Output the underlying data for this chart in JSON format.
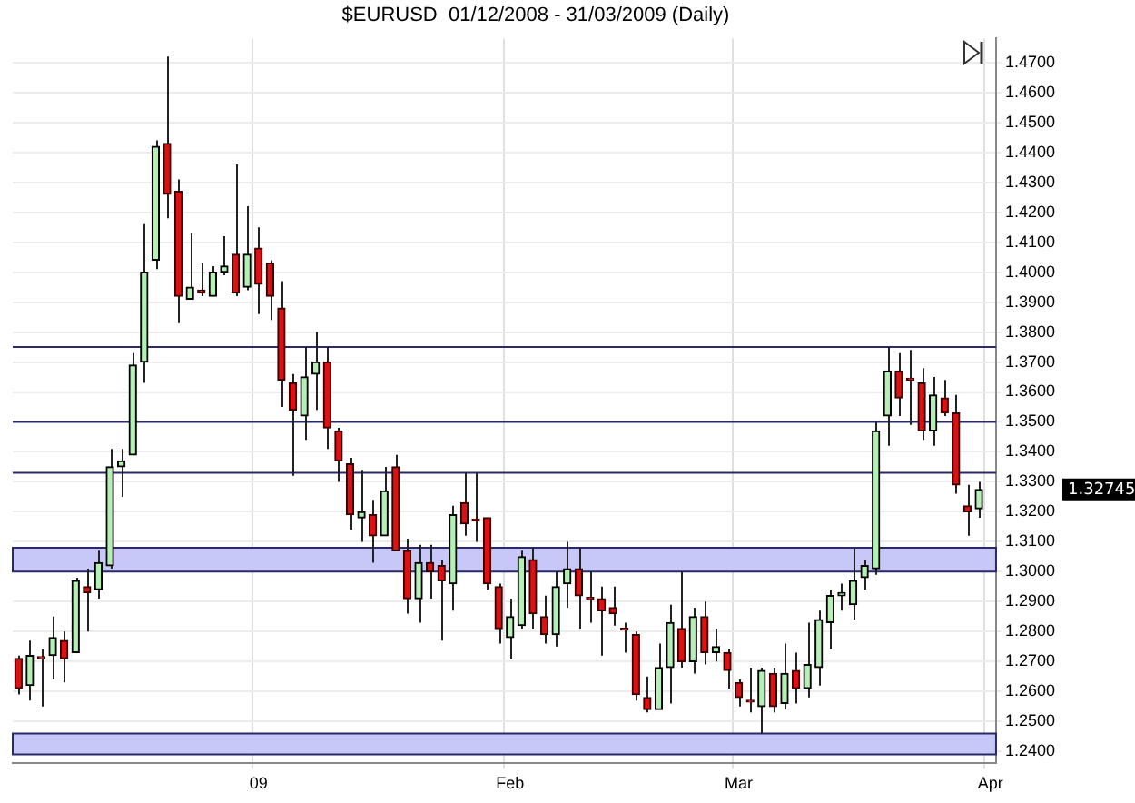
{
  "chart_data": {
    "type": "candlestick",
    "title": "$EURUSD  01/12/2008 - 31/03/2009 (Daily)",
    "categories": [
      null,
      null,
      null,
      null,
      null,
      null,
      null,
      null,
      null,
      null,
      null,
      null,
      null,
      null,
      null,
      null,
      null,
      null,
      null,
      null,
      null,
      "09",
      null,
      null,
      null,
      null,
      null,
      null,
      null,
      null,
      null,
      null,
      null,
      null,
      null,
      null,
      null,
      null,
      null,
      null,
      null,
      null,
      null,
      "Feb",
      null,
      null,
      null,
      null,
      null,
      null,
      null,
      null,
      null,
      null,
      null,
      null,
      null,
      null,
      null,
      null,
      null,
      null,
      null,
      "Mar",
      null,
      null,
      null,
      null,
      null,
      null,
      null,
      null,
      null,
      null,
      null,
      null,
      null,
      null,
      null,
      null,
      null,
      null,
      null,
      null,
      null,
      "Apr"
    ],
    "ohlc": [
      [
        1.271,
        1.272,
        1.259,
        1.261
      ],
      [
        1.262,
        1.277,
        1.257,
        1.272
      ],
      [
        1.2715,
        1.274,
        1.255,
        1.271
      ],
      [
        1.272,
        1.285,
        1.264,
        1.278
      ],
      [
        1.277,
        1.28,
        1.263,
        1.271
      ],
      [
        1.273,
        1.298,
        1.273,
        1.297
      ],
      [
        1.295,
        1.301,
        1.28,
        1.293
      ],
      [
        1.294,
        1.307,
        1.291,
        1.303
      ],
      [
        1.302,
        1.341,
        1.301,
        1.335
      ],
      [
        1.335,
        1.341,
        1.325,
        1.337
      ],
      [
        1.339,
        1.373,
        1.339,
        1.369
      ],
      [
        1.37,
        1.416,
        1.363,
        1.4
      ],
      [
        1.404,
        1.444,
        1.401,
        1.442
      ],
      [
        1.443,
        1.472,
        1.418,
        1.426
      ],
      [
        1.427,
        1.431,
        1.383,
        1.392
      ],
      [
        1.391,
        1.413,
        1.391,
        1.395
      ],
      [
        1.394,
        1.403,
        1.392,
        1.393
      ],
      [
        1.392,
        1.402,
        1.392,
        1.4
      ],
      [
        1.4,
        1.412,
        1.399,
        1.402
      ],
      [
        1.406,
        1.436,
        1.392,
        1.393
      ],
      [
        1.395,
        1.422,
        1.394,
        1.406
      ],
      [
        1.408,
        1.415,
        1.386,
        1.396
      ],
      [
        1.403,
        1.404,
        1.384,
        1.392
      ],
      [
        1.388,
        1.397,
        1.355,
        1.364
      ],
      [
        1.363,
        1.366,
        1.332,
        1.354
      ],
      [
        1.352,
        1.375,
        1.344,
        1.365
      ],
      [
        1.366,
        1.38,
        1.354,
        1.37
      ],
      [
        1.37,
        1.375,
        1.341,
        1.348
      ],
      [
        1.347,
        1.348,
        1.33,
        1.337
      ],
      [
        1.336,
        1.338,
        1.314,
        1.319
      ],
      [
        1.318,
        1.334,
        1.31,
        1.32
      ],
      [
        1.319,
        1.324,
        1.303,
        1.312
      ],
      [
        1.312,
        1.335,
        1.312,
        1.327
      ],
      [
        1.335,
        1.339,
        1.307,
        1.307
      ],
      [
        1.307,
        1.311,
        1.286,
        1.291
      ],
      [
        1.291,
        1.309,
        1.283,
        1.303
      ],
      [
        1.303,
        1.309,
        1.291,
        1.3
      ],
      [
        1.302,
        1.304,
        1.277,
        1.297
      ],
      [
        1.296,
        1.322,
        1.287,
        1.319
      ],
      [
        1.323,
        1.333,
        1.312,
        1.316
      ],
      [
        1.3175,
        1.333,
        1.31,
        1.317
      ],
      [
        1.318,
        1.318,
        1.294,
        1.296
      ],
      [
        1.295,
        1.296,
        1.276,
        1.281
      ],
      [
        1.278,
        1.291,
        1.271,
        1.285
      ],
      [
        1.282,
        1.307,
        1.281,
        1.305
      ],
      [
        1.304,
        1.308,
        1.281,
        1.286
      ],
      [
        1.285,
        1.292,
        1.276,
        1.279
      ],
      [
        1.279,
        1.3,
        1.275,
        1.295
      ],
      [
        1.296,
        1.31,
        1.288,
        1.301
      ],
      [
        1.301,
        1.308,
        1.281,
        1.292
      ],
      [
        1.2912,
        1.3,
        1.283,
        1.2908
      ],
      [
        1.291,
        1.295,
        1.272,
        1.287
      ],
      [
        1.288,
        1.295,
        1.282,
        1.286
      ],
      [
        1.2808,
        1.283,
        1.273,
        1.2805
      ],
      [
        1.279,
        1.28,
        1.257,
        1.259
      ],
      [
        1.258,
        1.265,
        1.253,
        1.254
      ],
      [
        1.254,
        1.276,
        1.254,
        1.268
      ],
      [
        1.268,
        1.289,
        1.256,
        1.283
      ],
      [
        1.281,
        1.3,
        1.268,
        1.27
      ],
      [
        1.27,
        1.288,
        1.266,
        1.285
      ],
      [
        1.285,
        1.29,
        1.269,
        1.273
      ],
      [
        1.273,
        1.281,
        1.27,
        1.275
      ],
      [
        1.273,
        1.274,
        1.261,
        1.267
      ],
      [
        1.263,
        1.264,
        1.255,
        1.258
      ],
      [
        1.2568,
        1.268,
        1.253,
        1.2565
      ],
      [
        1.255,
        1.268,
        1.246,
        1.267
      ],
      [
        1.266,
        1.268,
        1.253,
        1.255
      ],
      [
        1.256,
        1.276,
        1.254,
        1.266
      ],
      [
        1.267,
        1.273,
        1.256,
        1.261
      ],
      [
        1.261,
        1.283,
        1.258,
        1.269
      ],
      [
        1.268,
        1.287,
        1.262,
        1.284
      ],
      [
        1.283,
        1.294,
        1.274,
        1.292
      ],
      [
        1.292,
        1.296,
        1.287,
        1.293
      ],
      [
        1.289,
        1.308,
        1.284,
        1.297
      ],
      [
        1.298,
        1.304,
        1.294,
        1.302
      ],
      [
        1.301,
        1.35,
        1.299,
        1.347
      ],
      [
        1.352,
        1.375,
        1.342,
        1.367
      ],
      [
        1.367,
        1.373,
        1.352,
        1.358
      ],
      [
        1.3642,
        1.374,
        1.349,
        1.364
      ],
      [
        1.363,
        1.368,
        1.344,
        1.347
      ],
      [
        1.347,
        1.365,
        1.342,
        1.359
      ],
      [
        1.358,
        1.364,
        1.352,
        1.353
      ],
      [
        1.353,
        1.359,
        1.326,
        1.329
      ],
      [
        1.322,
        1.329,
        1.312,
        1.32
      ],
      [
        1.321,
        1.33,
        1.318,
        1.32745
      ],
      null
    ],
    "ylim": [
      1.236,
      1.478
    ],
    "yticks": [
      {
        "value": 1.24,
        "label": "1.2400"
      },
      {
        "value": 1.25,
        "label": "1.2500"
      },
      {
        "value": 1.26,
        "label": "1.2600"
      },
      {
        "value": 1.27,
        "label": "1.2700"
      },
      {
        "value": 1.28,
        "label": "1.2800"
      },
      {
        "value": 1.29,
        "label": "1.2900"
      },
      {
        "value": 1.3,
        "label": "1.3000"
      },
      {
        "value": 1.31,
        "label": "1.3100"
      },
      {
        "value": 1.32,
        "label": "1.3200"
      },
      {
        "value": 1.33,
        "label": "1.3300"
      },
      {
        "value": 1.34,
        "label": "1.3400"
      },
      {
        "value": 1.35,
        "label": "1.3500"
      },
      {
        "value": 1.36,
        "label": "1.3600"
      },
      {
        "value": 1.37,
        "label": "1.3700"
      },
      {
        "value": 1.38,
        "label": "1.3800"
      },
      {
        "value": 1.39,
        "label": "1.3900"
      },
      {
        "value": 1.4,
        "label": "1.4000"
      },
      {
        "value": 1.41,
        "label": "1.4100"
      },
      {
        "value": 1.42,
        "label": "1.4200"
      },
      {
        "value": 1.43,
        "label": "1.4300"
      },
      {
        "value": 1.44,
        "label": "1.4400"
      },
      {
        "value": 1.45,
        "label": "1.4500"
      },
      {
        "value": 1.46,
        "label": "1.4600"
      },
      {
        "value": 1.47,
        "label": "1.4700"
      }
    ],
    "ref_lines": [
      {
        "axis": "y",
        "value": 1.375,
        "color": "#2a2a6a"
      },
      {
        "axis": "y",
        "value": 1.35,
        "color": "#2a2a6a"
      },
      {
        "axis": "y",
        "value": 1.333,
        "color": "#2a2a6a"
      }
    ],
    "bands": [
      {
        "axis": "y",
        "from": 1.3,
        "to": 1.308,
        "color": "#c8c8f8"
      },
      {
        "axis": "y",
        "from": 1.239,
        "to": 1.246,
        "color": "#c8c8f8"
      }
    ],
    "annotations": [
      "1.32745"
    ],
    "grid": true,
    "legend": false
  }
}
